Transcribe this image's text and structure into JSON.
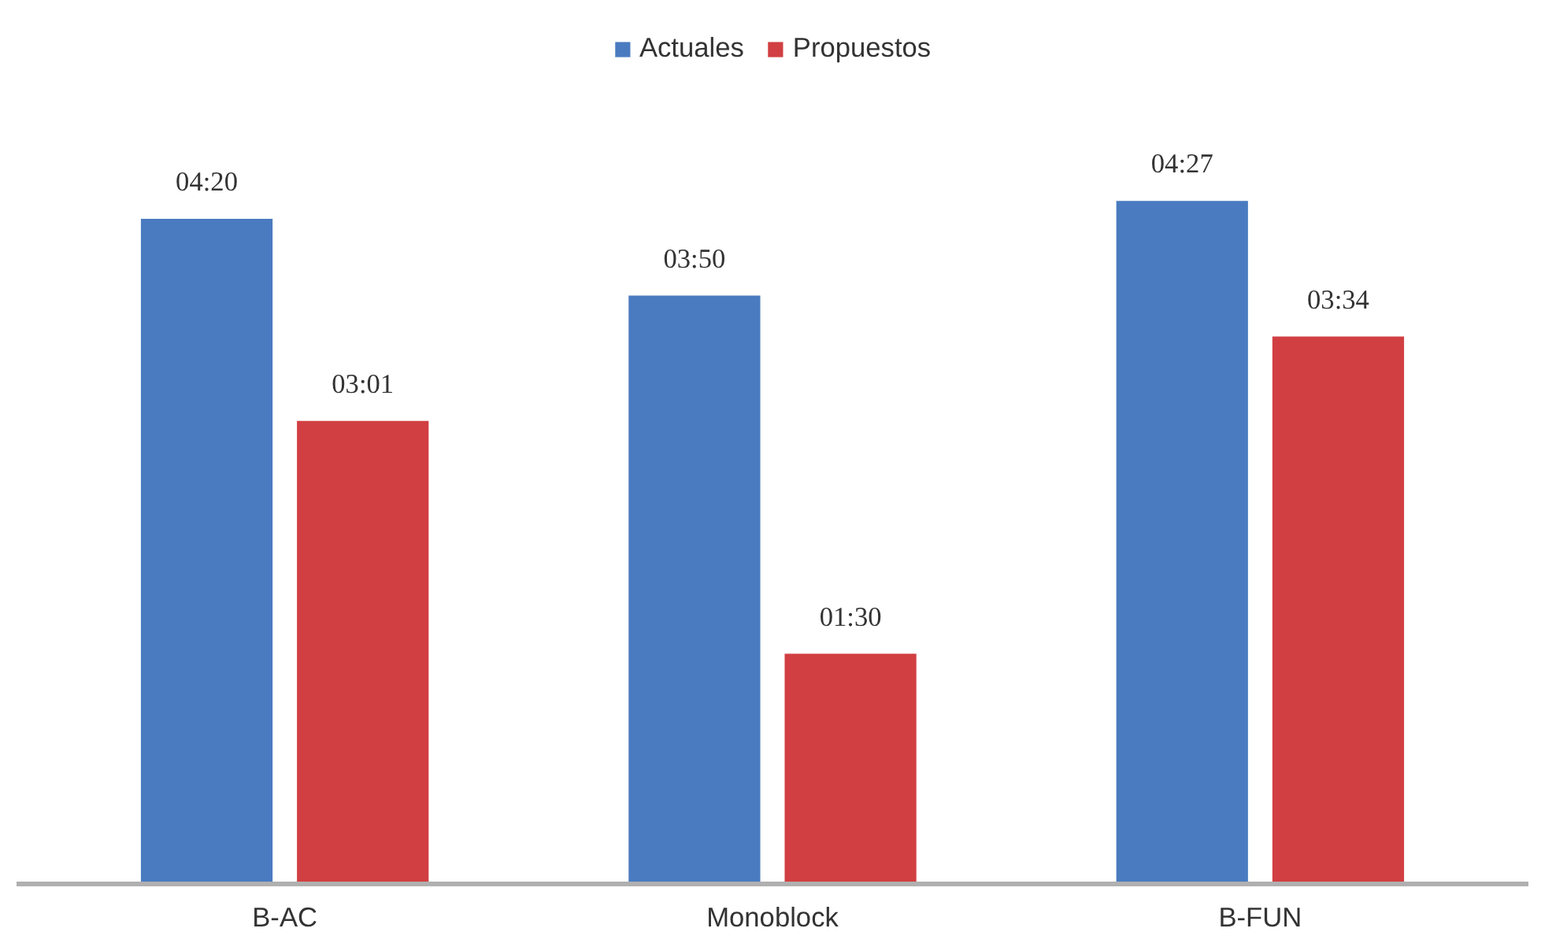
{
  "chart_data": {
    "type": "bar",
    "categories": [
      "B-AC",
      "Monoblock",
      "B-FUN"
    ],
    "series": [
      {
        "name": "Actuales",
        "color": "#4a7bc0",
        "values": [
          260,
          230,
          267
        ],
        "value_labels": [
          "04:20",
          "03:50",
          "04:27"
        ]
      },
      {
        "name": "Propuestos",
        "color": "#d13f42",
        "values": [
          181,
          90,
          214
        ],
        "value_labels": [
          "03:01",
          "01:30",
          "03:34"
        ]
      }
    ],
    "legend": "top",
    "grid": false
  }
}
